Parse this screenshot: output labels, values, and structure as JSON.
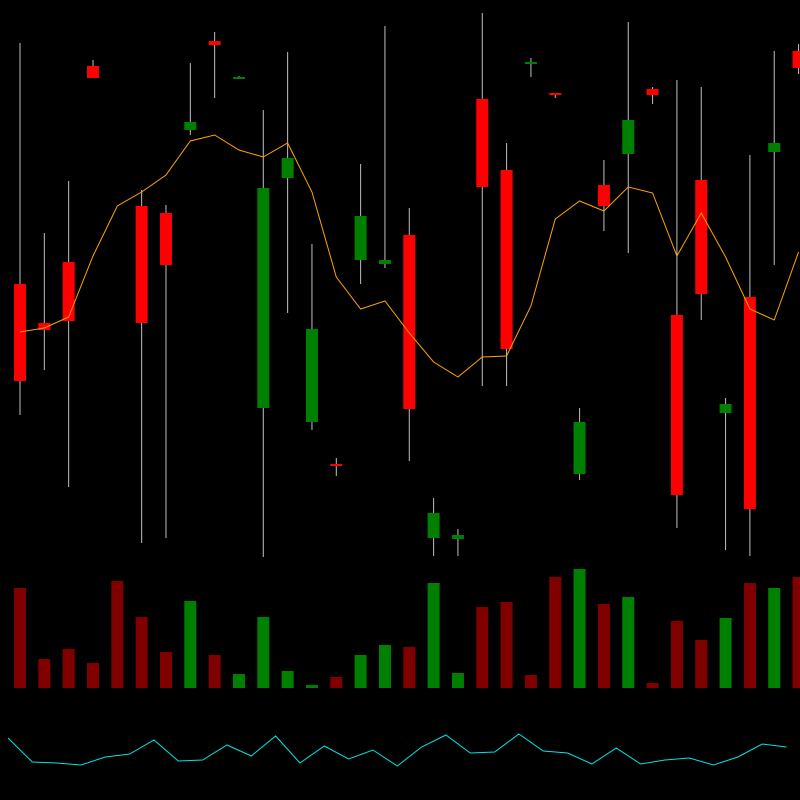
{
  "chart_data": {
    "type": "candlestick",
    "title": "",
    "xlabel": "",
    "ylabel": "",
    "grid": false,
    "background": "#000000",
    "colors": {
      "up": "#008000",
      "down": "#ff0000",
      "wick": "#c0c0c0",
      "volume_up": "#008000",
      "volume_down": "#800000",
      "ma": "#ffa500",
      "oscillator": "#00e5e5"
    },
    "candles": [
      {
        "o": 516,
        "h": 757,
        "l": 385,
        "c": 419
      },
      {
        "o": 477,
        "h": 567,
        "l": 430,
        "c": 470
      },
      {
        "o": 538,
        "h": 619,
        "l": 313,
        "c": 479
      },
      {
        "o": 734,
        "h": 740,
        "l": 722,
        "c": 722
      },
      null,
      {
        "o": 594,
        "h": 610,
        "l": 257,
        "c": 477
      },
      {
        "o": 587,
        "h": 595,
        "l": 262,
        "c": 535
      },
      {
        "o": 670,
        "h": 737,
        "l": 665,
        "c": 678
      },
      {
        "o": 759,
        "h": 768,
        "l": 702,
        "c": 755
      },
      {
        "o": 723,
        "h": 724,
        "l": 722,
        "c": 723
      },
      {
        "o": 392,
        "h": 690,
        "l": 243,
        "c": 612
      },
      {
        "o": 622,
        "h": 748,
        "l": 487,
        "c": 642
      },
      {
        "o": 378,
        "h": 556,
        "l": 370,
        "c": 471
      },
      {
        "o": 336,
        "h": 342,
        "l": 324,
        "c": 334
      },
      {
        "o": 540,
        "h": 636,
        "l": 516,
        "c": 584
      },
      {
        "o": 536,
        "h": 774,
        "l": 532,
        "c": 540
      },
      {
        "o": 565,
        "h": 592,
        "l": 339,
        "c": 391
      },
      {
        "o": 262,
        "h": 302,
        "l": 244,
        "c": 287
      },
      {
        "o": 261,
        "h": 271,
        "l": 244,
        "c": 265
      },
      {
        "o": 701,
        "h": 787,
        "l": 414,
        "c": 613
      },
      {
        "o": 630,
        "h": 657,
        "l": 414,
        "c": 451
      },
      {
        "o": 738,
        "h": 742,
        "l": 723,
        "c": 738
      },
      {
        "o": 707,
        "h": 707,
        "l": 702,
        "c": 705
      },
      {
        "o": 326,
        "h": 392,
        "l": 320,
        "c": 378
      },
      {
        "o": 615,
        "h": 640,
        "l": 569,
        "c": 594
      },
      {
        "o": 646,
        "h": 778,
        "l": 547,
        "c": 680
      },
      {
        "o": 711,
        "h": 713,
        "l": 696,
        "c": 705
      },
      {
        "o": 485,
        "h": 720,
        "l": 272,
        "c": 305
      },
      {
        "o": 620,
        "h": 713,
        "l": 480,
        "c": 506
      },
      {
        "o": 387,
        "h": 402,
        "l": 250,
        "c": 396
      },
      {
        "o": 503,
        "h": 645,
        "l": 244,
        "c": 291
      },
      {
        "o": 648,
        "h": 749,
        "l": 535,
        "c": 657
      },
      {
        "o": 749,
        "h": 756,
        "l": 726,
        "c": 732
      }
    ],
    "volume": [
      100,
      29,
      39,
      25,
      107,
      71,
      36,
      87,
      33,
      14,
      71,
      17,
      3,
      11,
      33,
      43,
      41,
      105,
      15,
      81,
      86,
      13,
      111,
      119,
      84,
      91,
      5,
      67,
      48,
      70,
      105,
      100,
      111
    ],
    "volume_direction": [
      "down",
      "down",
      "down",
      "down",
      "down",
      "down",
      "down",
      "up",
      "down",
      "up",
      "up",
      "up",
      "up",
      "down",
      "up",
      "up",
      "down",
      "up",
      "up",
      "down",
      "down",
      "down",
      "down",
      "up",
      "down",
      "up",
      "down",
      "down",
      "down",
      "up",
      "down",
      "up",
      "down"
    ],
    "moving_average": [
      468,
      472,
      483,
      544,
      594,
      608,
      625,
      659,
      665,
      650,
      643,
      657,
      608,
      523,
      491,
      499,
      467,
      438,
      423,
      443,
      444,
      494,
      581,
      599,
      589,
      613,
      607,
      544,
      587,
      543,
      491,
      480,
      548
    ],
    "oscillator": [
      62,
      38,
      37,
      35,
      43,
      46,
      60,
      39,
      40,
      55,
      44,
      64,
      37,
      54,
      41,
      50,
      34,
      53,
      65,
      47,
      48,
      66,
      49,
      47,
      36,
      52,
      36,
      40,
      42,
      35,
      43,
      56,
      53
    ]
  }
}
